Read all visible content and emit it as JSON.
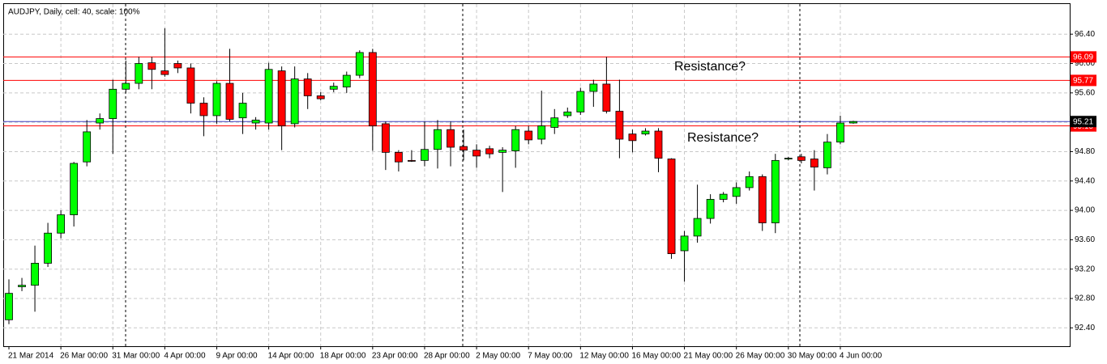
{
  "chart_data": {
    "type": "candlestick",
    "title": "AUDJPY, Daily, cell: 40, scale: 100%",
    "categories": [
      "21 Mar 2014",
      null,
      null,
      null,
      "26 Mar 00:00",
      null,
      null,
      null,
      "31 Mar 00:00",
      null,
      null,
      null,
      "4 Apr 00:00",
      null,
      null,
      null,
      "9 Apr 00:00",
      null,
      null,
      null,
      "14 Apr 00:00",
      null,
      null,
      null,
      "18 Apr 00:00",
      null,
      null,
      null,
      "23 Apr 00:00",
      null,
      null,
      null,
      "28 Apr 00:00",
      null,
      null,
      null,
      "2 May 00:00",
      null,
      null,
      null,
      "7 May 00:00",
      null,
      null,
      null,
      "12 May 00:00",
      null,
      null,
      null,
      "16 May 00:00",
      null,
      null,
      null,
      "21 May 00:00",
      null,
      null,
      null,
      "26 May 00:00",
      null,
      null,
      null,
      "30 May 00:00",
      null,
      null,
      null,
      "4 Jun 00:00",
      null
    ],
    "open": [
      92.51,
      92.96,
      92.98,
      93.28,
      93.69,
      93.94,
      94.66,
      95.19,
      95.25,
      95.65,
      95.73,
      96.01,
      95.9,
      96.0,
      95.94,
      95.46,
      95.29,
      95.73,
      95.26,
      95.19,
      95.19,
      95.9,
      95.18,
      95.79,
      95.56,
      95.65,
      95.68,
      95.84,
      96.15,
      95.18,
      94.79,
      94.68,
      94.68,
      94.83,
      95.1,
      94.87,
      94.82,
      94.84,
      94.79,
      94.81,
      95.08,
      94.97,
      95.13,
      95.29,
      95.34,
      95.62,
      95.72,
      95.35,
      95.04,
      95.04,
      95.08,
      94.7,
      93.45,
      93.65,
      93.89,
      94.15,
      94.19,
      94.31,
      94.46,
      93.83,
      94.7,
      94.73,
      94.7,
      94.58,
      94.93,
      95.19
    ],
    "high": [
      93.06,
      93.08,
      93.52,
      93.83,
      94.0,
      94.66,
      95.23,
      95.32,
      95.78,
      96.04,
      96.09,
      96.09,
      96.48,
      96.04,
      96.0,
      95.54,
      95.76,
      96.2,
      95.6,
      95.27,
      96.01,
      95.96,
      95.96,
      95.87,
      95.61,
      95.74,
      95.89,
      96.18,
      96.2,
      95.21,
      94.82,
      94.82,
      95.21,
      95.23,
      95.21,
      95.1,
      94.9,
      94.88,
      94.86,
      95.15,
      95.15,
      95.63,
      95.38,
      95.4,
      95.67,
      95.78,
      96.09,
      95.78,
      95.1,
      95.12,
      95.12,
      94.71,
      93.72,
      94.35,
      94.22,
      94.25,
      94.38,
      94.53,
      94.49,
      94.77,
      94.73,
      94.77,
      94.82,
      95.04,
      95.29,
      95.22
    ],
    "low": [
      92.45,
      92.9,
      92.62,
      93.23,
      93.62,
      93.78,
      94.6,
      95.1,
      94.77,
      95.6,
      95.65,
      95.65,
      95.82,
      95.87,
      95.32,
      95.01,
      95.18,
      95.21,
      95.04,
      95.1,
      95.1,
      94.82,
      95.13,
      95.38,
      95.5,
      95.61,
      95.6,
      95.8,
      94.81,
      94.55,
      94.53,
      94.66,
      94.6,
      94.57,
      94.6,
      94.68,
      94.58,
      94.71,
      94.25,
      94.58,
      94.9,
      94.9,
      95.04,
      95.26,
      95.3,
      95.41,
      95.32,
      94.71,
      94.79,
      95.02,
      94.52,
      93.34,
      93.03,
      93.56,
      93.82,
      94.11,
      94.09,
      94.27,
      93.72,
      93.69,
      94.68,
      94.64,
      94.27,
      94.49,
      94.9,
      95.18
    ],
    "close": [
      92.87,
      92.98,
      93.28,
      93.69,
      93.94,
      94.64,
      95.07,
      95.25,
      95.65,
      95.73,
      96.0,
      95.92,
      95.85,
      95.94,
      95.46,
      95.29,
      95.73,
      95.24,
      95.46,
      95.23,
      95.92,
      95.15,
      95.79,
      95.56,
      95.52,
      95.69,
      95.84,
      96.15,
      95.15,
      94.79,
      94.66,
      94.67,
      94.83,
      95.1,
      94.86,
      94.82,
      94.74,
      94.77,
      94.82,
      95.1,
      94.96,
      95.15,
      95.26,
      95.34,
      95.62,
      95.72,
      95.35,
      94.97,
      94.95,
      95.08,
      94.71,
      93.41,
      93.65,
      93.89,
      94.15,
      94.22,
      94.31,
      94.46,
      93.83,
      94.68,
      94.71,
      94.68,
      94.59,
      94.93,
      95.19,
      95.21
    ],
    "up_color": "#00ff00",
    "down_color": "#ff0000",
    "ylim": [
      92.15,
      96.81
    ],
    "yticks": [
      {
        "value": 92.4,
        "label": "92.40"
      },
      {
        "value": 92.8,
        "label": "92.80"
      },
      {
        "value": 93.2,
        "label": "93.20"
      },
      {
        "value": 93.6,
        "label": "93.60"
      },
      {
        "value": 94.0,
        "label": "94.00"
      },
      {
        "value": 94.4,
        "label": "94.40"
      },
      {
        "value": 94.8,
        "label": "94.80"
      },
      {
        "value": 95.2,
        "label": "95.20"
      },
      {
        "value": 95.6,
        "label": "95.60"
      },
      {
        "value": 96.0,
        "label": "96.00"
      },
      {
        "value": 96.4,
        "label": "96.40"
      }
    ],
    "grid": true,
    "hlines": [
      {
        "value": 96.09,
        "color": "#ff0000"
      },
      {
        "value": 95.77,
        "color": "#ff0000"
      },
      {
        "value": 95.15,
        "color": "#ff0000"
      },
      {
        "value": 95.21,
        "color": "#4040c0"
      }
    ],
    "annotations": [
      "Resistance?",
      "Resistance?"
    ]
  }
}
